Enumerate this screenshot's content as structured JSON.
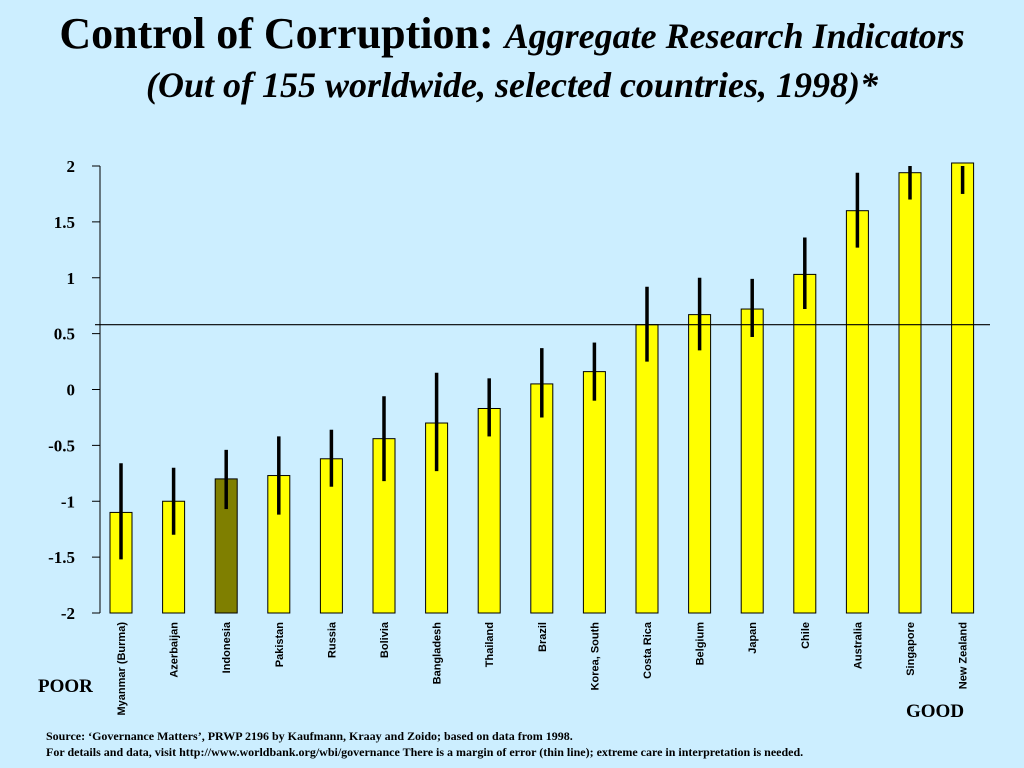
{
  "title": {
    "main": "Control of Corruption:",
    "sub": "Aggregate Research Indicators",
    "line2": "(Out of 155 worldwide, selected countries, 1998)*"
  },
  "labels": {
    "poor": "POOR",
    "good": "GOOD"
  },
  "source": {
    "line1": "Source: ‘Governance Matters’, PRWP 2196 by Kaufmann, Kraay and Zoido; based on data from 1998.",
    "line2": "For details and  data, visit http://www.worldbank.org/wbi/governance   There is a margin of error (thin line); extreme care in interpretation is needed."
  },
  "colors": {
    "background": "#cceeff",
    "bar": "#ffff00",
    "bar_highlight": "#7f7f00",
    "error_bar": "#000000"
  },
  "chart_data": {
    "type": "bar",
    "categories": [
      "Myanmar (Burma)",
      "Azerbaijan",
      "Indonesia",
      "Pakistan",
      "Russia",
      "Bolivia",
      "Bangladesh",
      "Thailand",
      "Brazil",
      "Korea, South",
      "Costa Rica",
      "Belgium",
      "Japan",
      "Chile",
      "Australia",
      "Singapore",
      "New Zealand"
    ],
    "values": [
      -1.1,
      -1.0,
      -0.8,
      -0.77,
      -0.62,
      -0.44,
      -0.3,
      -0.17,
      0.05,
      0.16,
      0.58,
      0.67,
      0.72,
      1.03,
      1.6,
      1.94,
      2.05
    ],
    "error_low": [
      -1.52,
      -1.3,
      -1.07,
      -1.12,
      -0.87,
      -0.82,
      -0.73,
      -0.42,
      -0.25,
      -0.1,
      0.25,
      0.35,
      0.47,
      0.72,
      1.27,
      1.7,
      1.75
    ],
    "error_high": [
      -0.66,
      -0.7,
      -0.54,
      -0.42,
      -0.36,
      -0.06,
      0.15,
      0.1,
      0.37,
      0.42,
      0.92,
      1.0,
      0.99,
      1.36,
      1.94,
      2.0,
      2.0
    ],
    "highlight": "Indonesia",
    "reference_line": 0.58,
    "yticks": [
      "2",
      "1.5",
      "1",
      "0.5",
      "0",
      "-0.5",
      "-1",
      "-1.5",
      "-2"
    ],
    "ylim": [
      -2,
      2
    ],
    "title": "Control of Corruption: Aggregate Research Indicators (Out of 155 worldwide, selected countries, 1998)*",
    "xlabel": "",
    "ylabel": "",
    "grid": false,
    "legend": "none"
  }
}
